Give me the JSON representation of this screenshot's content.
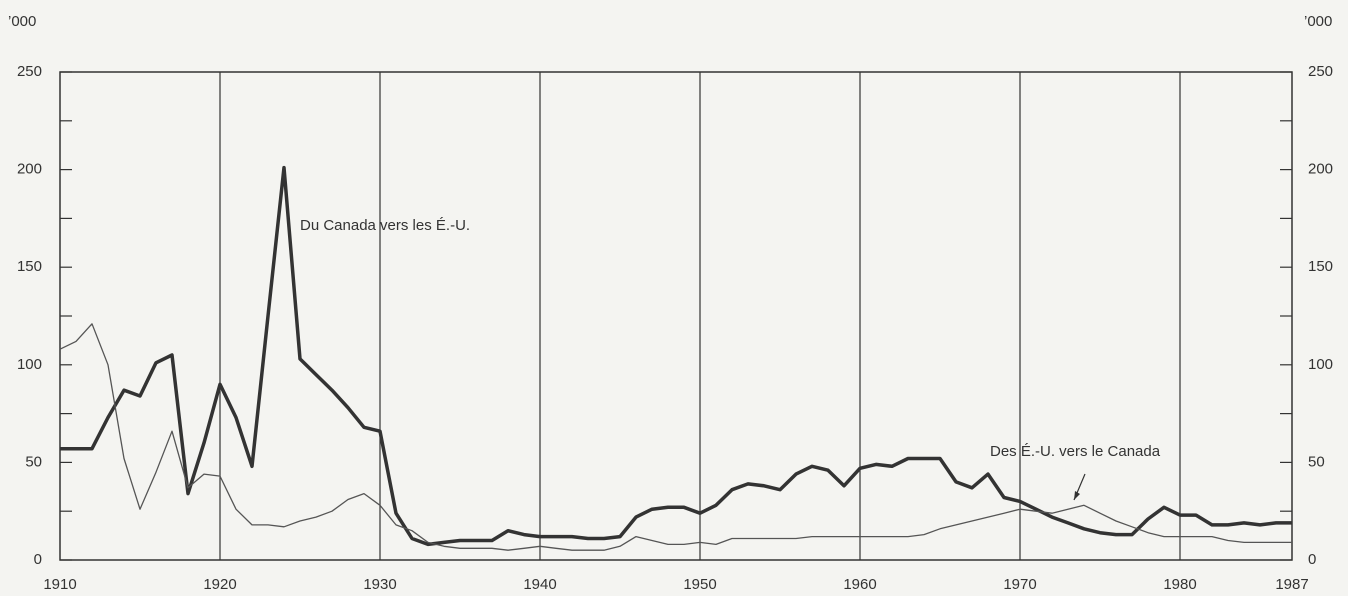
{
  "chart_data": {
    "type": "line",
    "unit_label": "’000",
    "x": [
      1910,
      1911,
      1912,
      1913,
      1914,
      1915,
      1916,
      1917,
      1918,
      1919,
      1920,
      1921,
      1922,
      1923,
      1924,
      1925,
      1926,
      1927,
      1928,
      1929,
      1930,
      1931,
      1932,
      1933,
      1934,
      1935,
      1936,
      1937,
      1938,
      1939,
      1940,
      1941,
      1942,
      1943,
      1944,
      1945,
      1946,
      1947,
      1948,
      1949,
      1950,
      1951,
      1952,
      1953,
      1954,
      1955,
      1956,
      1957,
      1958,
      1959,
      1960,
      1961,
      1962,
      1963,
      1964,
      1965,
      1966,
      1967,
      1968,
      1969,
      1970,
      1971,
      1972,
      1973,
      1974,
      1975,
      1976,
      1977,
      1978,
      1979,
      1980,
      1981,
      1982,
      1983,
      1984,
      1985,
      1986,
      1987
    ],
    "series": [
      {
        "name": "Du Canada vers les É.-U.",
        "color": "#333333",
        "width": 3.5,
        "values": [
          57,
          57,
          57,
          73,
          87,
          84,
          101,
          105,
          34,
          60,
          90,
          73,
          48,
          125,
          201,
          103,
          95,
          87,
          78,
          68,
          66,
          24,
          11,
          8,
          9,
          10,
          10,
          10,
          15,
          13,
          12,
          12,
          12,
          11,
          11,
          12,
          22,
          26,
          27,
          27,
          24,
          28,
          36,
          39,
          38,
          36,
          44,
          48,
          46,
          38,
          47,
          49,
          48,
          52,
          52,
          52,
          40,
          37,
          44,
          32,
          30,
          26,
          22,
          19,
          16,
          14,
          13,
          13,
          21,
          27,
          23,
          23,
          18,
          18,
          19,
          18,
          19,
          19
        ]
      },
      {
        "name": "Des É.-U. vers le Canada",
        "color": "#555555",
        "width": 1.3,
        "values": [
          108,
          112,
          121,
          100,
          52,
          26,
          45,
          66,
          37,
          44,
          43,
          26,
          18,
          18,
          17,
          20,
          22,
          25,
          31,
          34,
          28,
          18,
          15,
          9,
          7,
          6,
          6,
          6,
          5,
          6,
          7,
          6,
          5,
          5,
          5,
          7,
          12,
          10,
          8,
          8,
          9,
          8,
          11,
          11,
          11,
          11,
          11,
          12,
          12,
          12,
          12,
          12,
          12,
          12,
          13,
          16,
          18,
          20,
          22,
          24,
          26,
          25,
          24,
          26,
          28,
          24,
          20,
          17,
          14,
          12,
          12,
          12,
          12,
          10,
          9,
          9,
          9,
          9
        ]
      }
    ],
    "xlim": [
      1910,
      1987
    ],
    "xticks": [
      1910,
      1920,
      1930,
      1940,
      1950,
      1960,
      1970,
      1980,
      1987
    ],
    "ylim": [
      0,
      250
    ],
    "yticks": [
      0,
      50,
      100,
      150,
      200,
      250
    ],
    "yticks_minor": [
      25,
      75,
      125,
      175,
      225
    ],
    "y2lim": [
      0,
      250
    ],
    "y2ticks": [
      0,
      50,
      100,
      150,
      200,
      250
    ],
    "grid": "x"
  }
}
